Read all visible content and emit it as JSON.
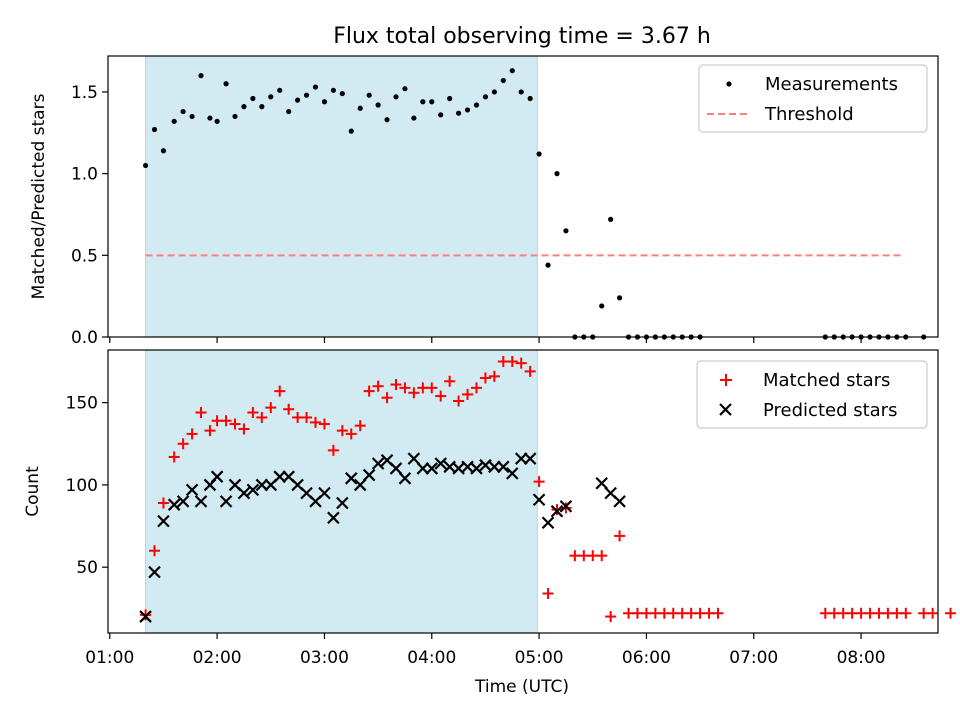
{
  "title": "Flux total observing time = 3.67 h",
  "xlabel": "Time (UTC)",
  "x_ticks": [
    "01:00",
    "02:00",
    "03:00",
    "04:00",
    "05:00",
    "06:00",
    "07:00",
    "08:00"
  ],
  "colors": {
    "highlight": "#add8e6",
    "threshold": "#ff7f7f",
    "matched": "#ff0000",
    "predicted": "#000000",
    "measurement": "#000000"
  },
  "chart_data": [
    {
      "type": "scatter",
      "ylabel": "Matched/Predicted stars",
      "xlim": [
        "00:59",
        "08:43"
      ],
      "ylim": [
        0,
        1.72
      ],
      "y_ticks": [
        0.0,
        0.5,
        1.0,
        1.5
      ],
      "y_tick_labels": [
        "0.0",
        "0.5",
        "1.0",
        "1.5"
      ],
      "legend_position": "top-right",
      "highlight": {
        "x_start": "01:20",
        "x_end": "04:59"
      },
      "threshold": {
        "name": "Threshold",
        "y": 0.5,
        "x_start": "01:20",
        "x_end": "08:23"
      },
      "series": [
        {
          "name": "Measurements",
          "points": [
            [
              "01:20",
              1.05
            ],
            [
              "01:25",
              1.27
            ],
            [
              "01:30",
              1.14
            ],
            [
              "01:36",
              1.32
            ],
            [
              "01:41",
              1.38
            ],
            [
              "01:46",
              1.35
            ],
            [
              "01:51",
              1.6
            ],
            [
              "01:56",
              1.34
            ],
            [
              "02:00",
              1.32
            ],
            [
              "02:05",
              1.55
            ],
            [
              "02:10",
              1.35
            ],
            [
              "02:15",
              1.41
            ],
            [
              "02:20",
              1.46
            ],
            [
              "02:25",
              1.41
            ],
            [
              "02:30",
              1.47
            ],
            [
              "02:35",
              1.51
            ],
            [
              "02:40",
              1.38
            ],
            [
              "02:45",
              1.45
            ],
            [
              "02:50",
              1.48
            ],
            [
              "02:55",
              1.53
            ],
            [
              "03:00",
              1.44
            ],
            [
              "03:05",
              1.51
            ],
            [
              "03:10",
              1.49
            ],
            [
              "03:15",
              1.26
            ],
            [
              "03:20",
              1.4
            ],
            [
              "03:25",
              1.48
            ],
            [
              "03:30",
              1.42
            ],
            [
              "03:35",
              1.33
            ],
            [
              "03:40",
              1.47
            ],
            [
              "03:45",
              1.52
            ],
            [
              "03:50",
              1.34
            ],
            [
              "03:55",
              1.44
            ],
            [
              "04:00",
              1.44
            ],
            [
              "04:05",
              1.36
            ],
            [
              "04:10",
              1.46
            ],
            [
              "04:15",
              1.37
            ],
            [
              "04:20",
              1.39
            ],
            [
              "04:25",
              1.42
            ],
            [
              "04:30",
              1.47
            ],
            [
              "04:35",
              1.5
            ],
            [
              "04:40",
              1.57
            ],
            [
              "04:45",
              1.63
            ],
            [
              "04:50",
              1.5
            ],
            [
              "04:55",
              1.46
            ],
            [
              "05:00",
              1.12
            ],
            [
              "05:05",
              0.44
            ],
            [
              "05:10",
              1.0
            ],
            [
              "05:15",
              0.65
            ],
            [
              "05:20",
              0.0
            ],
            [
              "05:25",
              0.0
            ],
            [
              "05:30",
              0.0
            ],
            [
              "05:35",
              0.19
            ],
            [
              "05:40",
              0.72
            ],
            [
              "05:45",
              0.24
            ],
            [
              "05:50",
              0.0
            ],
            [
              "05:55",
              0.0
            ],
            [
              "06:00",
              0.0
            ],
            [
              "06:05",
              0.0
            ],
            [
              "06:10",
              0.0
            ],
            [
              "06:15",
              0.0
            ],
            [
              "06:20",
              0.0
            ],
            [
              "06:25",
              0.0
            ],
            [
              "06:30",
              0.0
            ],
            [
              "07:40",
              0.0
            ],
            [
              "07:45",
              0.0
            ],
            [
              "07:50",
              0.0
            ],
            [
              "07:55",
              0.0
            ],
            [
              "08:00",
              0.0
            ],
            [
              "08:05",
              0.0
            ],
            [
              "08:10",
              0.0
            ],
            [
              "08:15",
              0.0
            ],
            [
              "08:20",
              0.0
            ],
            [
              "08:25",
              0.0
            ],
            [
              "08:35",
              0.0
            ]
          ]
        }
      ]
    },
    {
      "type": "scatter",
      "ylabel": "Count",
      "xlim": [
        "00:59",
        "08:43"
      ],
      "ylim": [
        10,
        182
      ],
      "y_ticks": [
        50,
        100,
        150
      ],
      "y_tick_labels": [
        "50",
        "100",
        "150"
      ],
      "legend_position": "top-right",
      "highlight": {
        "x_start": "01:20",
        "x_end": "04:59"
      },
      "series": [
        {
          "name": "Matched stars",
          "marker": "plus",
          "points": [
            [
              "01:20",
              21
            ],
            [
              "01:25",
              60
            ],
            [
              "01:30",
              89
            ],
            [
              "01:36",
              117
            ],
            [
              "01:41",
              125
            ],
            [
              "01:46",
              131
            ],
            [
              "01:51",
              144
            ],
            [
              "01:56",
              133
            ],
            [
              "02:00",
              139
            ],
            [
              "02:05",
              139
            ],
            [
              "02:10",
              137
            ],
            [
              "02:15",
              134
            ],
            [
              "02:20",
              144
            ],
            [
              "02:25",
              141
            ],
            [
              "02:30",
              147
            ],
            [
              "02:35",
              157
            ],
            [
              "02:40",
              146
            ],
            [
              "02:45",
              141
            ],
            [
              "02:50",
              141
            ],
            [
              "02:55",
              138
            ],
            [
              "03:00",
              137
            ],
            [
              "03:05",
              121
            ],
            [
              "03:10",
              133
            ],
            [
              "03:15",
              131
            ],
            [
              "03:20",
              136
            ],
            [
              "03:25",
              157
            ],
            [
              "03:30",
              160
            ],
            [
              "03:35",
              153
            ],
            [
              "03:40",
              161
            ],
            [
              "03:45",
              159
            ],
            [
              "03:50",
              156
            ],
            [
              "03:55",
              159
            ],
            [
              "04:00",
              159
            ],
            [
              "04:05",
              154
            ],
            [
              "04:10",
              163
            ],
            [
              "04:15",
              151
            ],
            [
              "04:20",
              155
            ],
            [
              "04:25",
              159
            ],
            [
              "04:30",
              165
            ],
            [
              "04:35",
              166
            ],
            [
              "04:40",
              175
            ],
            [
              "04:45",
              175
            ],
            [
              "04:50",
              174
            ],
            [
              "04:55",
              169
            ],
            [
              "05:00",
              102
            ],
            [
              "05:05",
              34
            ],
            [
              "05:10",
              85
            ],
            [
              "05:15",
              86
            ],
            [
              "05:20",
              57
            ],
            [
              "05:25",
              57
            ],
            [
              "05:30",
              57
            ],
            [
              "05:35",
              57
            ],
            [
              "05:40",
              20
            ],
            [
              "05:45",
              69
            ],
            [
              "05:50",
              22
            ],
            [
              "05:55",
              22
            ],
            [
              "06:00",
              22
            ],
            [
              "06:05",
              22
            ],
            [
              "06:10",
              22
            ],
            [
              "06:15",
              22
            ],
            [
              "06:20",
              22
            ],
            [
              "06:25",
              22
            ],
            [
              "06:30",
              22
            ],
            [
              "06:35",
              22
            ],
            [
              "06:40",
              22
            ],
            [
              "07:40",
              22
            ],
            [
              "07:45",
              22
            ],
            [
              "07:50",
              22
            ],
            [
              "07:55",
              22
            ],
            [
              "08:00",
              22
            ],
            [
              "08:05",
              22
            ],
            [
              "08:10",
              22
            ],
            [
              "08:15",
              22
            ],
            [
              "08:20",
              22
            ],
            [
              "08:25",
              22
            ],
            [
              "08:35",
              22
            ],
            [
              "08:40",
              22
            ],
            [
              "08:50",
              22
            ]
          ]
        },
        {
          "name": "Predicted stars",
          "marker": "x",
          "points": [
            [
              "01:20",
              20
            ],
            [
              "01:25",
              47
            ],
            [
              "01:30",
              78
            ],
            [
              "01:36",
              88
            ],
            [
              "01:41",
              90
            ],
            [
              "01:46",
              97
            ],
            [
              "01:51",
              90
            ],
            [
              "01:56",
              100
            ],
            [
              "02:00",
              105
            ],
            [
              "02:05",
              90
            ],
            [
              "02:10",
              100
            ],
            [
              "02:15",
              95
            ],
            [
              "02:20",
              97
            ],
            [
              "02:25",
              100
            ],
            [
              "02:30",
              100
            ],
            [
              "02:35",
              105
            ],
            [
              "02:40",
              105
            ],
            [
              "02:45",
              100
            ],
            [
              "02:50",
              95
            ],
            [
              "02:55",
              90
            ],
            [
              "03:00",
              95
            ],
            [
              "03:05",
              80
            ],
            [
              "03:10",
              89
            ],
            [
              "03:15",
              104
            ],
            [
              "03:20",
              100
            ],
            [
              "03:25",
              106
            ],
            [
              "03:30",
              113
            ],
            [
              "03:35",
              115
            ],
            [
              "03:40",
              110
            ],
            [
              "03:45",
              104
            ],
            [
              "03:50",
              116
            ],
            [
              "03:55",
              110
            ],
            [
              "04:00",
              110
            ],
            [
              "04:05",
              113
            ],
            [
              "04:10",
              111
            ],
            [
              "04:15",
              110
            ],
            [
              "04:20",
              111
            ],
            [
              "04:25",
              110
            ],
            [
              "04:30",
              112
            ],
            [
              "04:35",
              111
            ],
            [
              "04:40",
              111
            ],
            [
              "04:45",
              107
            ],
            [
              "04:50",
              116
            ],
            [
              "04:55",
              116
            ],
            [
              "05:00",
              91
            ],
            [
              "05:05",
              77
            ],
            [
              "05:10",
              84
            ],
            [
              "05:15",
              87
            ],
            [
              "05:35",
              101
            ],
            [
              "05:40",
              95
            ],
            [
              "05:45",
              90
            ]
          ]
        }
      ]
    }
  ]
}
